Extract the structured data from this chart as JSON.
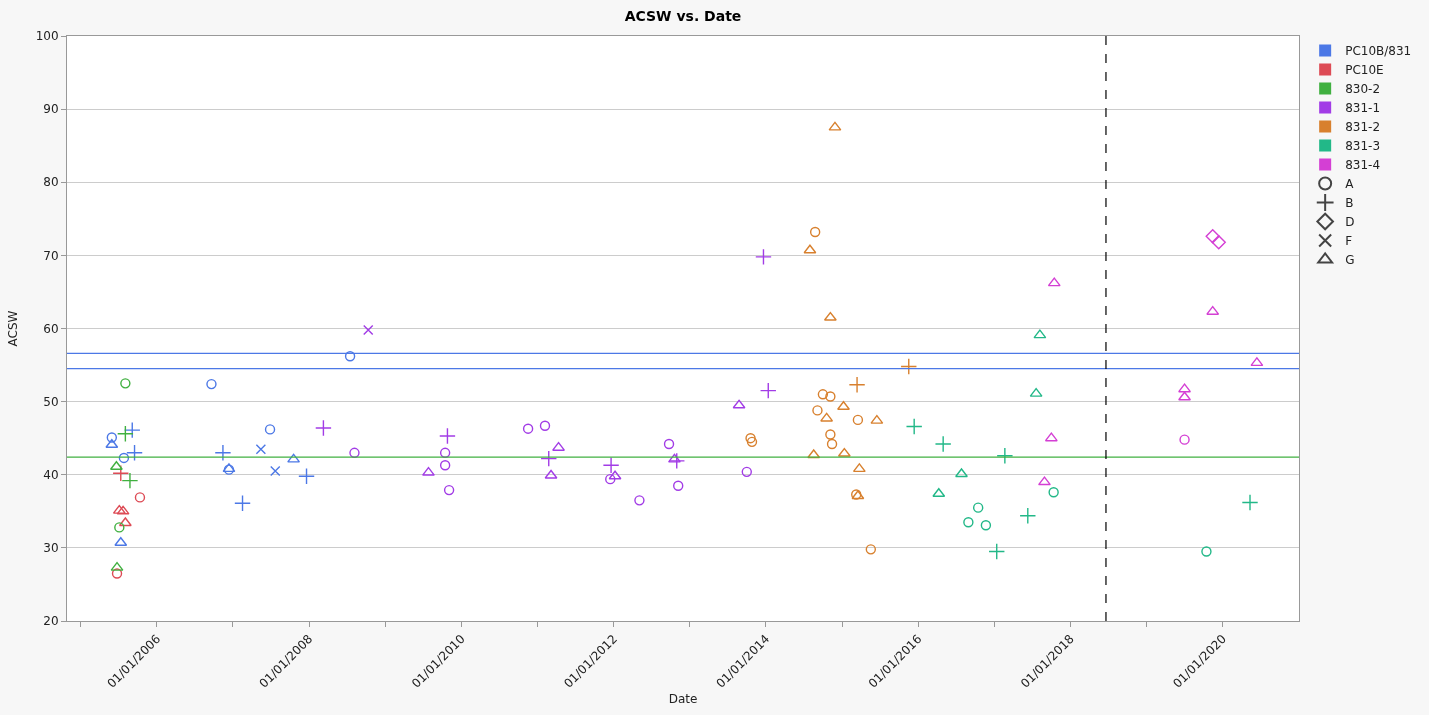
{
  "chart_data": {
    "type": "scatter",
    "title": "ACSW vs. Date",
    "xlabel": "Date",
    "ylabel": "ACSW",
    "xlim": [
      "2004-10-27",
      "2021-01-01"
    ],
    "xticks": [
      {
        "value": "2005-01-01",
        "label": null
      },
      {
        "value": "2006-01-01",
        "label": "01/01/2006"
      },
      {
        "value": "2007-01-01",
        "label": null
      },
      {
        "value": "2008-01-01",
        "label": "01/01/2008"
      },
      {
        "value": "2009-01-01",
        "label": null
      },
      {
        "value": "2010-01-01",
        "label": "01/01/2010"
      },
      {
        "value": "2011-01-01",
        "label": null
      },
      {
        "value": "2012-01-01",
        "label": "01/01/2012"
      },
      {
        "value": "2013-01-01",
        "label": null
      },
      {
        "value": "2014-01-01",
        "label": "01/01/2014"
      },
      {
        "value": "2015-01-01",
        "label": null
      },
      {
        "value": "2016-01-01",
        "label": "01/01/2016"
      },
      {
        "value": "2017-01-01",
        "label": null
      },
      {
        "value": "2018-01-01",
        "label": "01/01/2018"
      },
      {
        "value": "2019-01-01",
        "label": null
      },
      {
        "value": "2020-01-01",
        "label": "01/01/2020"
      }
    ],
    "ylim": [
      20,
      100
    ],
    "yticks": [
      20,
      30,
      40,
      50,
      60,
      70,
      80,
      90,
      100
    ],
    "grid": "y",
    "legend": "top right",
    "ref_lines": [
      {
        "axis": "y",
        "value": 56.6,
        "color": "#4c78e6",
        "line_style": "solid"
      },
      {
        "axis": "y",
        "value": 54.5,
        "color": "#4c78e6",
        "line_style": "solid"
      },
      {
        "axis": "y",
        "value": 42.4,
        "color": "#40b040",
        "line_style": "solid"
      },
      {
        "axis": "x",
        "value": "2018-06-20",
        "color": "#000000",
        "line_style": "dashed"
      }
    ],
    "series": [
      {
        "name": "PC10B/831",
        "color": "#4c78e6",
        "marker": "square"
      },
      {
        "name": "PC10E",
        "color": "#dd4b55",
        "marker": "square"
      },
      {
        "name": "830-2",
        "color": "#40b040",
        "marker": "square"
      },
      {
        "name": "831-1",
        "color": "#a23ce6",
        "marker": "square"
      },
      {
        "name": "831-2",
        "color": "#d8802e",
        "marker": "square"
      },
      {
        "name": "831-3",
        "color": "#22b888",
        "marker": "square"
      },
      {
        "name": "831-4",
        "color": "#d43fd4",
        "marker": "square"
      },
      {
        "name": "A",
        "color": "#444444",
        "marker": "circle"
      },
      {
        "name": "B",
        "color": "#444444",
        "marker": "cross"
      },
      {
        "name": "D",
        "color": "#444444",
        "marker": "diamond"
      },
      {
        "name": "F",
        "color": "#444444",
        "marker": "x"
      },
      {
        "name": "G",
        "color": "#444444",
        "marker": "triangle"
      },
      {
        "color": "#4c78e6",
        "marker": "circle",
        "x": [
          "2005-05-30",
          "2005-07-27",
          "2006-09-20",
          "2006-12-13",
          "2007-06-28",
          "2008-07-16"
        ],
        "values": [
          45.1,
          42.3,
          52.4,
          40.7,
          46.2,
          56.2
        ]
      },
      {
        "color": "#4c78e6",
        "marker": "cross",
        "x": [
          "2005-09-05",
          "2005-09-16",
          "2006-11-14",
          "2007-02-16",
          "2007-12-20"
        ],
        "values": [
          46.1,
          43.0,
          43.0,
          36.1,
          39.8
        ]
      },
      {
        "color": "#4c78e6",
        "marker": "x",
        "x": [
          "2007-05-15",
          "2007-07-23"
        ],
        "values": [
          43.5,
          40.5
        ]
      },
      {
        "color": "#4c78e6",
        "marker": "triangle",
        "x": [
          "2005-05-30",
          "2005-07-12",
          "2006-12-13",
          "2007-10-19"
        ],
        "values": [
          44.1,
          30.7,
          40.8,
          42.1
        ]
      },
      {
        "color": "#dd4b55",
        "marker": "cross",
        "x": [
          "2005-07-12"
        ],
        "values": [
          40.2
        ]
      },
      {
        "color": "#dd4b55",
        "marker": "circle",
        "x": [
          "2005-10-12",
          "2005-06-24"
        ],
        "values": [
          36.9,
          26.5
        ]
      },
      {
        "color": "#dd4b55",
        "marker": "triangle",
        "x": [
          "2005-07-05",
          "2005-07-23",
          "2005-08-03"
        ],
        "values": [
          35.1,
          35.0,
          33.4
        ]
      },
      {
        "color": "#40b040",
        "marker": "circle",
        "x": [
          "2005-08-03",
          "2005-07-05"
        ],
        "values": [
          52.5,
          32.8
        ]
      },
      {
        "color": "#40b040",
        "marker": "cross",
        "x": [
          "2005-08-03",
          "2005-08-25"
        ],
        "values": [
          45.6,
          39.2
        ]
      },
      {
        "color": "#40b040",
        "marker": "triangle",
        "x": [
          "2005-06-21",
          "2005-06-24"
        ],
        "values": [
          41.1,
          27.3
        ]
      },
      {
        "color": "#a23ce6",
        "marker": "cross",
        "x": [
          "2008-03-10",
          "2009-10-26",
          "2011-02-24",
          "2011-12-20",
          "2012-10-30",
          "2013-12-20",
          "2014-01-12"
        ],
        "values": [
          46.4,
          45.3,
          42.2,
          41.3,
          41.9,
          69.8,
          51.5
        ]
      },
      {
        "color": "#a23ce6",
        "marker": "x",
        "x": [
          "2008-10-11"
        ],
        "values": [
          59.8
        ]
      },
      {
        "color": "#a23ce6",
        "marker": "circle",
        "x": [
          "2008-08-06",
          "2009-10-15",
          "2009-10-15",
          "2009-11-03",
          "2010-11-17",
          "2011-02-06",
          "2011-12-16",
          "2012-05-04",
          "2012-09-23",
          "2012-11-06",
          "2013-10-01"
        ],
        "values": [
          43.0,
          43.0,
          41.3,
          37.9,
          46.3,
          46.7,
          39.4,
          36.5,
          44.2,
          38.5,
          40.4
        ]
      },
      {
        "color": "#a23ce6",
        "marker": "triangle",
        "x": [
          "2009-07-27",
          "2011-04-12",
          "2011-03-07",
          "2012-01-08",
          "2012-10-19",
          "2013-08-25"
        ],
        "values": [
          40.3,
          43.7,
          39.9,
          39.8,
          42.1,
          49.5
        ]
      },
      {
        "color": "#d8802e",
        "marker": "circle",
        "x": [
          "2013-10-19",
          "2013-10-26",
          "2014-10-01",
          "2014-11-06",
          "2014-09-05",
          "2015-03-18",
          "2014-11-06",
          "2014-11-14",
          "2015-03-10",
          "2015-05-19",
          "2014-08-25"
        ],
        "values": [
          45.0,
          44.5,
          51.0,
          50.7,
          48.8,
          47.5,
          45.5,
          44.2,
          37.3,
          29.8,
          73.2
        ]
      },
      {
        "color": "#d8802e",
        "marker": "cross",
        "x": [
          "2015-03-14",
          "2015-11-17"
        ],
        "values": [
          52.3,
          54.8
        ]
      },
      {
        "color": "#d8802e",
        "marker": "triangle",
        "x": [
          "2014-11-06",
          "2015-01-08",
          "2014-10-19",
          "2015-06-17",
          "2014-08-18",
          "2015-01-12",
          "2015-03-25",
          "2015-03-18",
          "2014-11-28",
          "2014-07-31"
        ],
        "values": [
          61.5,
          49.3,
          47.7,
          47.4,
          42.7,
          42.9,
          40.8,
          37.1,
          87.5,
          70.7
        ]
      },
      {
        "color": "#22b888",
        "marker": "cross",
        "x": [
          "2015-12-13",
          "2016-04-30",
          "2017-02-20",
          "2017-06-10",
          "2017-01-12",
          "2020-05-11"
        ],
        "values": [
          46.6,
          44.2,
          42.6,
          34.4,
          29.5,
          36.2
        ]
      },
      {
        "color": "#22b888",
        "marker": "triangle",
        "x": [
          "2017-08-07",
          "2017-07-20",
          "2016-07-27",
          "2016-04-09"
        ],
        "values": [
          59.1,
          51.1,
          40.1,
          37.4
        ]
      },
      {
        "color": "#22b888",
        "marker": "circle",
        "x": [
          "2017-10-12",
          "2016-10-15",
          "2016-08-29",
          "2016-11-21",
          "2019-10-15"
        ],
        "values": [
          37.6,
          35.5,
          33.5,
          33.1,
          29.5
        ]
      },
      {
        "color": "#d43fd4",
        "marker": "triangle",
        "x": [
          "2017-10-15",
          "2019-11-14",
          "2020-06-13",
          "2019-07-02",
          "2019-07-02",
          "2017-10-01",
          "2017-08-29"
        ],
        "values": [
          66.2,
          62.3,
          55.3,
          51.7,
          50.6,
          45.0,
          39.0
        ]
      },
      {
        "color": "#d43fd4",
        "marker": "circle",
        "x": [
          "2019-07-02"
        ],
        "values": [
          44.8
        ]
      },
      {
        "color": "#d43fd4",
        "marker": "diamond",
        "x": [
          "2019-11-14",
          "2019-12-13"
        ],
        "values": [
          72.6,
          71.8
        ]
      }
    ]
  }
}
